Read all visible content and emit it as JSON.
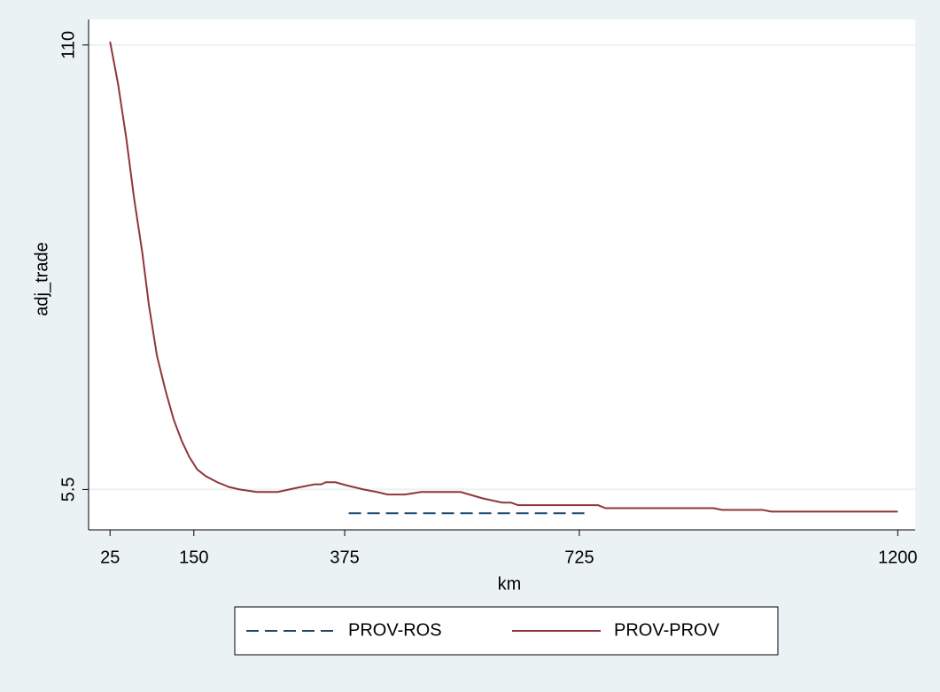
{
  "chart_data": {
    "type": "line",
    "x_label": "km",
    "y_label": "adj_trade",
    "xlim": [
      -7,
      1226
    ],
    "ylim": [
      -4,
      116
    ],
    "xticks": [
      25,
      150,
      375,
      725,
      1200
    ],
    "yticks": [
      5.5,
      110
    ],
    "grid": true,
    "legend": "bottom",
    "series": [
      {
        "name": "PROV-ROS",
        "color": "#1a476f",
        "dashed": true,
        "x": [
          381,
          736
        ],
        "values": [
          -0.1,
          -0.1
        ]
      },
      {
        "name": "PROV-PROV",
        "color": "#90353b",
        "dashed": false,
        "x": [
          25,
          37,
          49,
          61,
          73,
          83,
          95,
          108,
          120,
          132,
          143,
          155,
          168,
          185,
          202,
          218,
          244,
          275,
          304,
          330,
          340,
          347,
          361,
          377,
          403,
          423,
          439,
          465,
          489,
          519,
          548,
          581,
          610,
          623,
          634,
          753,
          764,
          925,
          938,
          998,
          1011,
          1200
        ],
        "values": [
          110.8,
          100.8,
          88.3,
          73.8,
          61.3,
          48.8,
          36.9,
          28.6,
          21.9,
          16.9,
          13.2,
          10.2,
          8.6,
          7.2,
          6.1,
          5.5,
          4.9,
          4.9,
          5.9,
          6.7,
          6.7,
          7.2,
          7.2,
          6.5,
          5.5,
          4.9,
          4.3,
          4.3,
          4.9,
          4.9,
          4.9,
          3.4,
          2.4,
          2.4,
          1.8,
          1.8,
          1.1,
          1.1,
          0.7,
          0.7,
          0.3,
          0.3
        ]
      }
    ]
  }
}
